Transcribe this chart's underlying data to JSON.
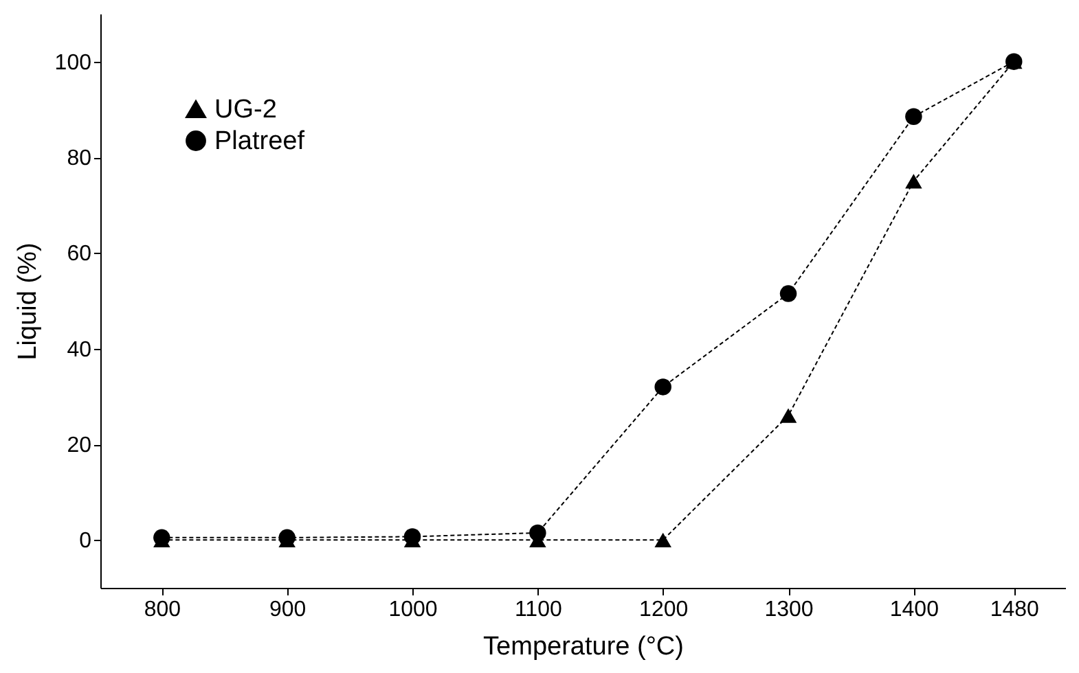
{
  "chart_data": {
    "type": "line",
    "xlabel": "Temperature (°C)",
    "ylabel": "Liquid (%)",
    "x": [
      800,
      900,
      1000,
      1100,
      1200,
      1300,
      1400,
      1480
    ],
    "series": [
      {
        "name": "UG-2",
        "color": "#000000",
        "marker": "triangle",
        "values": [
          0,
          0,
          0,
          0,
          0,
          26,
          75,
          100
        ]
      },
      {
        "name": "Platreef",
        "color": "#000000",
        "marker": "circle",
        "values": [
          0.5,
          0.5,
          0.7,
          1.5,
          32,
          51.5,
          88.5,
          100
        ]
      }
    ],
    "xlim": [
      751,
      1521
    ],
    "xticks": [
      800,
      900,
      1000,
      1100,
      1200,
      1300,
      1400,
      1480
    ],
    "ylim": [
      -10,
      110
    ],
    "yticks": [
      0,
      20,
      40,
      60,
      80,
      100
    ],
    "grid": false,
    "legend": "top left",
    "line_style": "dashed"
  }
}
